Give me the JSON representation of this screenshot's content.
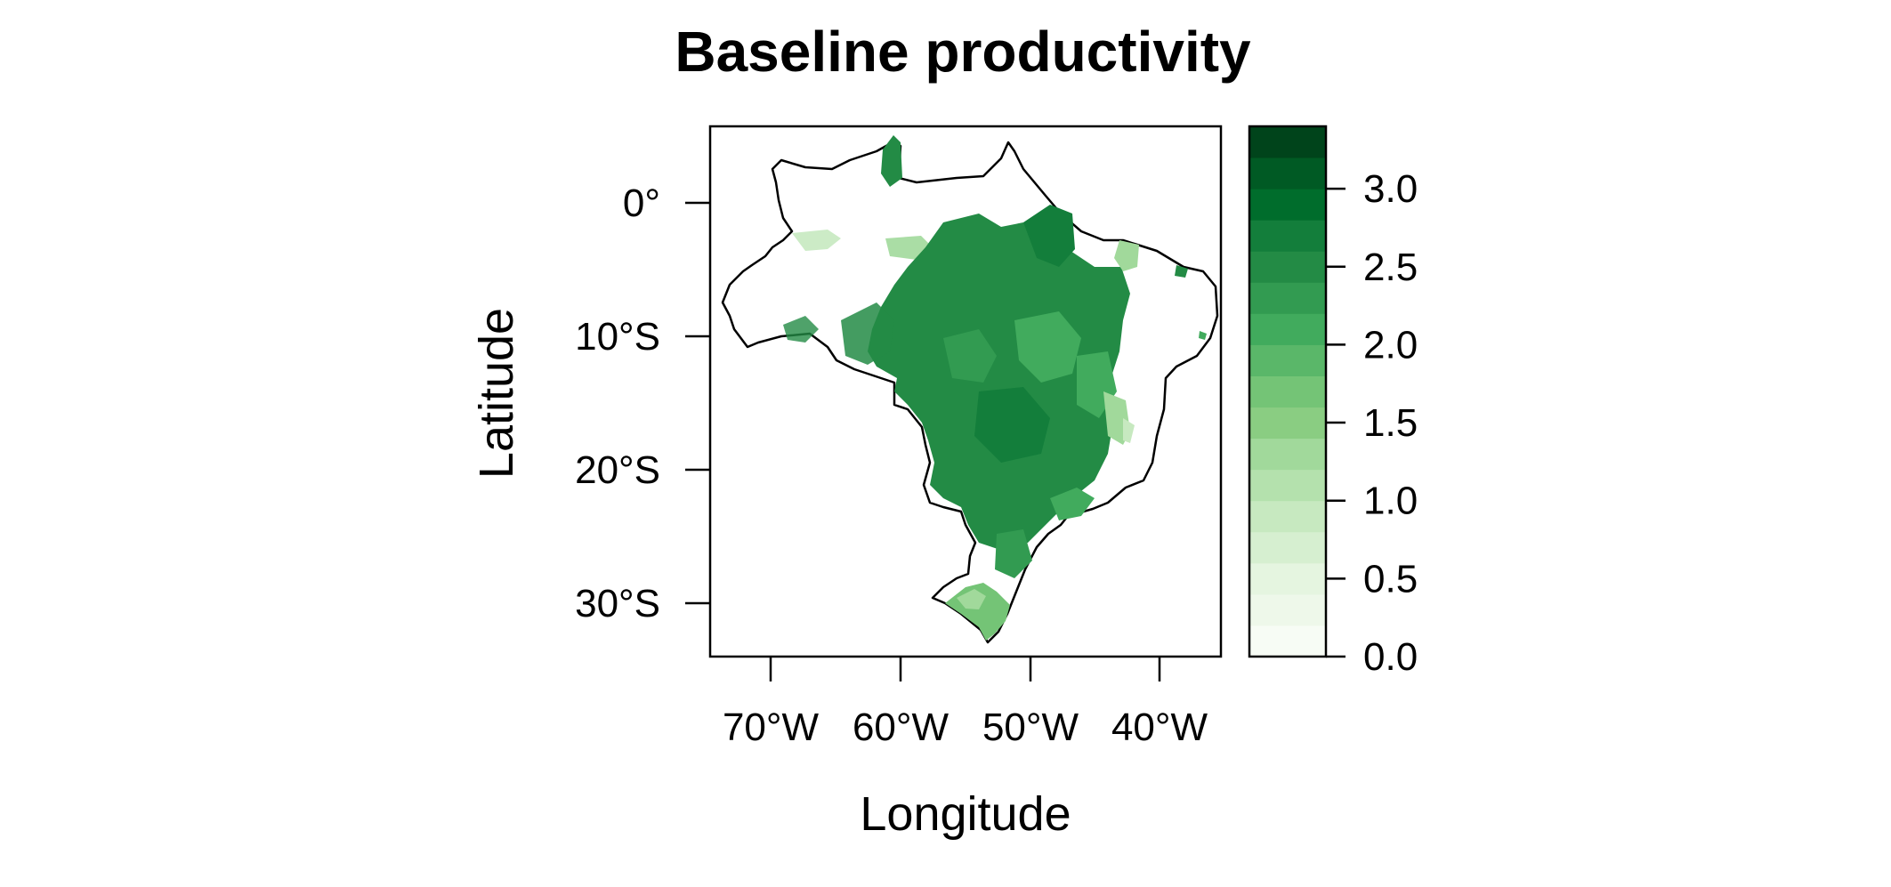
{
  "title": "Baseline productivity",
  "xlabel": "Longitude",
  "ylabel": "Latitude",
  "x_ticks": [
    "70°W",
    "60°W",
    "50°W",
    "40°W"
  ],
  "y_ticks": [
    "0°",
    "10°S",
    "20°S",
    "30°S"
  ],
  "colorbar": {
    "ticks": [
      "0.0",
      "0.5",
      "1.0",
      "1.5",
      "2.0",
      "2.5",
      "3.0"
    ],
    "colors": [
      "#f7fcf5",
      "#eef8ea",
      "#e5f5e0",
      "#d6efd0",
      "#c7e9c0",
      "#b4e1ad",
      "#a1d99b",
      "#8acd82",
      "#74c476",
      "#5ab769",
      "#41ab5d",
      "#329b51",
      "#238b45",
      "#137e3b",
      "#006d2c",
      "#005a24",
      "#00441b"
    ]
  },
  "chart_data": {
    "type": "heatmap",
    "title": "Baseline productivity",
    "xlabel": "Longitude",
    "ylabel": "Latitude",
    "xlim": [
      -75,
      -35
    ],
    "ylim": [
      -34,
      5.5
    ],
    "x_ticks": [
      -70,
      -60,
      -50,
      -40
    ],
    "y_ticks": [
      0,
      -10,
      -20,
      -30
    ],
    "colorbar_range": [
      0.0,
      3.4
    ],
    "colorbar_ticks": [
      0.0,
      0.5,
      1.0,
      1.5,
      2.0,
      2.5,
      3.0
    ],
    "colormap": "Greens"
  }
}
